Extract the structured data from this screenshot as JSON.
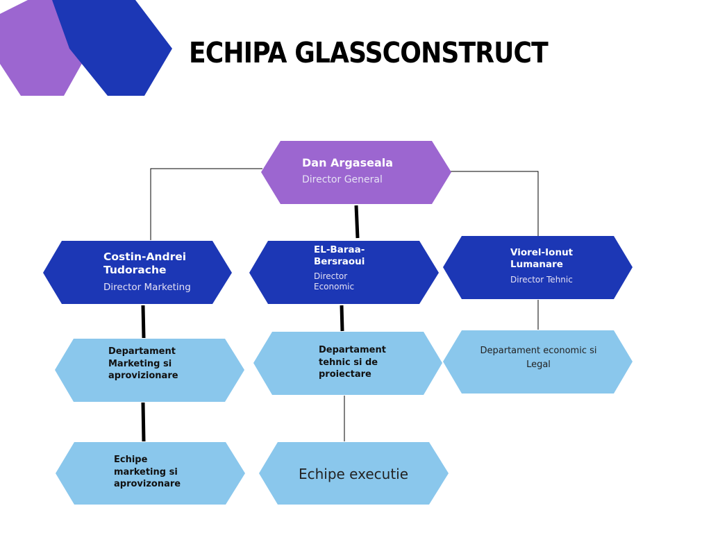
{
  "title": "ECHIPA GLASSCONSTRUCT",
  "colors": {
    "purple": "#9C66D0",
    "royal_blue": "#1C37B5",
    "light_blue": "#8AC7EC",
    "line": "#000000"
  },
  "general_director": {
    "name": "Dan Argaseala",
    "role": "Director General"
  },
  "directors": [
    {
      "name": "Costin-Andrei Tudorache",
      "role": "Director Marketing"
    },
    {
      "name": "EL-Baraa-Bersraoui",
      "role": "Director Economic"
    },
    {
      "name": "Viorel-Ionut Lumanare",
      "role": "Director Tehnic"
    }
  ],
  "departments": [
    "Departament Marketing si aprovizionare",
    "Departament tehnic si de proiectare",
    "Departament economic si Legal"
  ],
  "teams": [
    "Echipe marketing si aprovizonare",
    "Echipe executie"
  ]
}
